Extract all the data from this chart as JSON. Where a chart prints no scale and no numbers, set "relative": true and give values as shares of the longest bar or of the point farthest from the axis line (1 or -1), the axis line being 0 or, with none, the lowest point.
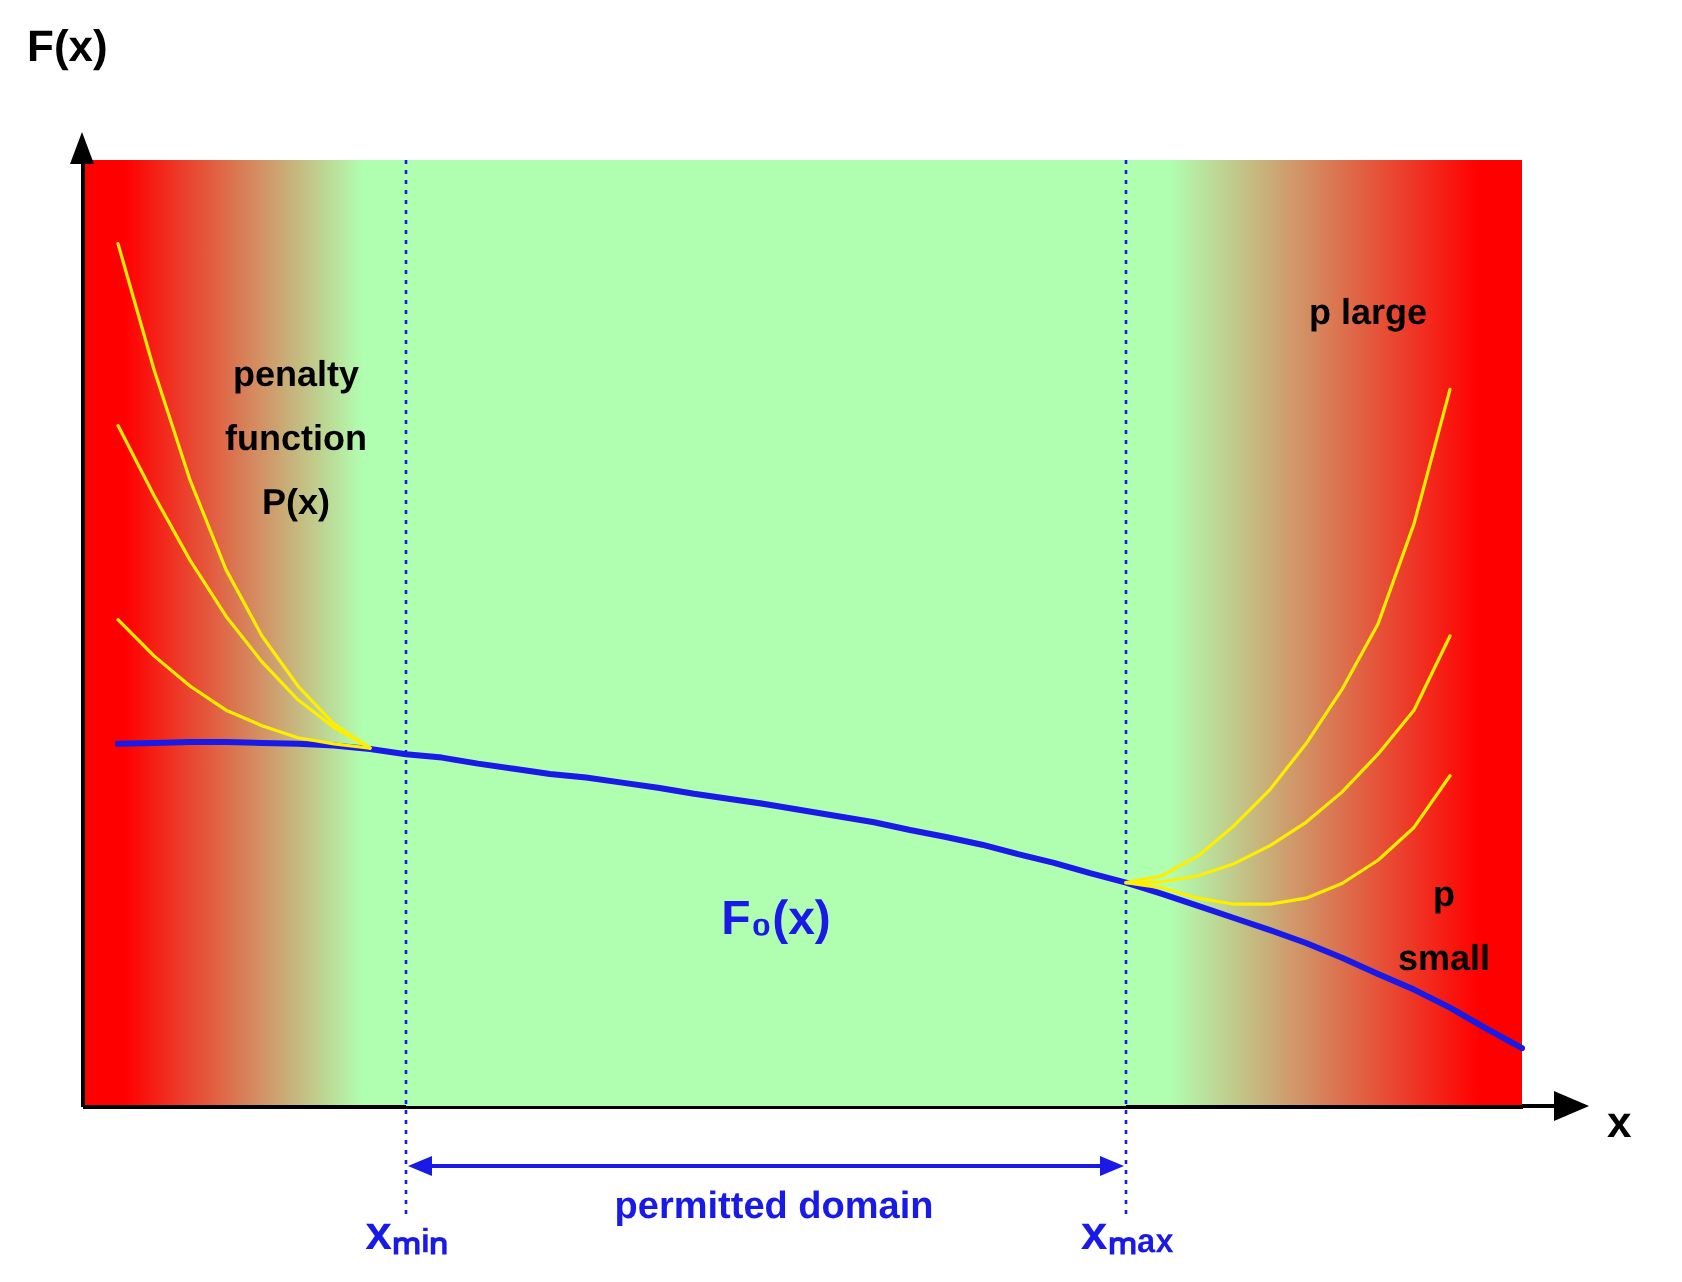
{
  "chart_data": {
    "type": "line",
    "relative": true,
    "xlabel": "x",
    "ylabel": "F(x)",
    "tick_labels": "x",
    "grid": false,
    "marker": "none",
    "line_style": "solid",
    "categories": [
      null,
      null,
      null,
      null,
      null,
      null,
      null,
      null,
      null,
      "xₘᵢₙ",
      null,
      null,
      null,
      null,
      null,
      null,
      null,
      null,
      null,
      null,
      null,
      null,
      null,
      null,
      null,
      null,
      null,
      null,
      null,
      "xₘₐₓ",
      null,
      null,
      null,
      null,
      null,
      null,
      null,
      null,
      null,
      null,
      null
    ],
    "series": [
      {
        "name": "F₀(x)",
        "color": "#1a1ae6",
        "values": [
          null,
          0.42,
          0.421,
          0.422,
          0.422,
          0.421,
          0.42,
          0.418,
          0.414,
          0.408,
          0.404,
          0.397,
          0.391,
          0.385,
          0.381,
          0.375,
          0.369,
          0.362,
          0.356,
          0.35,
          0.343,
          0.336,
          0.329,
          0.32,
          0.312,
          0.303,
          0.292,
          0.282,
          0.27,
          0.259,
          0.246,
          0.232,
          0.218,
          0.204,
          0.189,
          0.172,
          0.153,
          0.135,
          0.114,
          0.09,
          0.067
        ]
      },
      {
        "color": "#ffee00",
        "values": [
          null,
          1.0,
          0.854,
          0.726,
          0.622,
          0.545,
          0.487,
          0.443,
          0.415,
          null,
          null,
          null,
          null,
          null,
          null,
          null,
          null,
          null,
          null,
          null,
          null,
          null,
          null,
          null,
          null,
          null,
          null,
          null,
          null,
          null,
          null,
          null,
          null,
          null,
          null,
          null,
          null,
          null,
          null,
          null,
          null
        ]
      },
      {
        "color": "#ffee00",
        "values": [
          null,
          0.789,
          0.708,
          0.633,
          0.568,
          0.515,
          0.471,
          0.439,
          0.415,
          null,
          null,
          null,
          null,
          null,
          null,
          null,
          null,
          null,
          null,
          null,
          null,
          null,
          null,
          null,
          null,
          null,
          null,
          null,
          null,
          null,
          null,
          null,
          null,
          null,
          null,
          null,
          null,
          null,
          null,
          null,
          null
        ]
      },
      {
        "color": "#ffee00",
        "values": [
          null,
          0.564,
          0.522,
          0.487,
          0.459,
          0.441,
          0.427,
          0.42,
          0.415,
          null,
          null,
          null,
          null,
          null,
          null,
          null,
          null,
          null,
          null,
          null,
          null,
          null,
          null,
          null,
          null,
          null,
          null,
          null,
          null,
          null,
          null,
          null,
          null,
          null,
          null,
          null,
          null,
          null,
          null,
          null,
          null
        ]
      },
      {
        "color": "#ffee00",
        "values": [
          null,
          null,
          null,
          null,
          null,
          null,
          null,
          null,
          null,
          null,
          null,
          null,
          null,
          null,
          null,
          null,
          null,
          null,
          null,
          null,
          null,
          null,
          null,
          null,
          null,
          null,
          null,
          null,
          null,
          0.259,
          0.267,
          0.29,
          0.325,
          0.367,
          0.42,
          0.483,
          0.559,
          0.675,
          0.831,
          null,
          null
        ]
      },
      {
        "color": "#ffee00",
        "values": [
          null,
          null,
          null,
          null,
          null,
          null,
          null,
          null,
          null,
          null,
          null,
          null,
          null,
          null,
          null,
          null,
          null,
          null,
          null,
          null,
          null,
          null,
          null,
          null,
          null,
          null,
          null,
          null,
          null,
          0.259,
          0.26,
          0.267,
          0.281,
          0.302,
          0.329,
          0.364,
          0.408,
          0.459,
          0.545,
          null,
          null
        ]
      },
      {
        "color": "#ffee00",
        "values": [
          null,
          null,
          null,
          null,
          null,
          null,
          null,
          null,
          null,
          null,
          null,
          null,
          null,
          null,
          null,
          null,
          null,
          null,
          null,
          null,
          null,
          null,
          null,
          null,
          null,
          null,
          null,
          null,
          null,
          0.259,
          0.253,
          0.241,
          0.234,
          0.234,
          0.241,
          0.258,
          0.285,
          0.323,
          0.383,
          null,
          null
        ]
      }
    ],
    "bands": [
      {
        "axis": "x",
        "from": "xₘᵢₙ",
        "to": "xₘₐₓ",
        "color": "#b0ffb0"
      }
    ],
    "ref_lines": [
      {
        "axis": "x",
        "value": "xₘᵢₙ",
        "color": "#1a1ae6",
        "line_style": "dotted"
      },
      {
        "axis": "x",
        "value": "xₘₐₓ",
        "color": "#1a1ae6",
        "line_style": "dotted"
      }
    ],
    "annotations": [
      "permitted domain",
      "penalty\nfunction\nP(x)",
      "p large",
      "p\nsmall"
    ]
  }
}
